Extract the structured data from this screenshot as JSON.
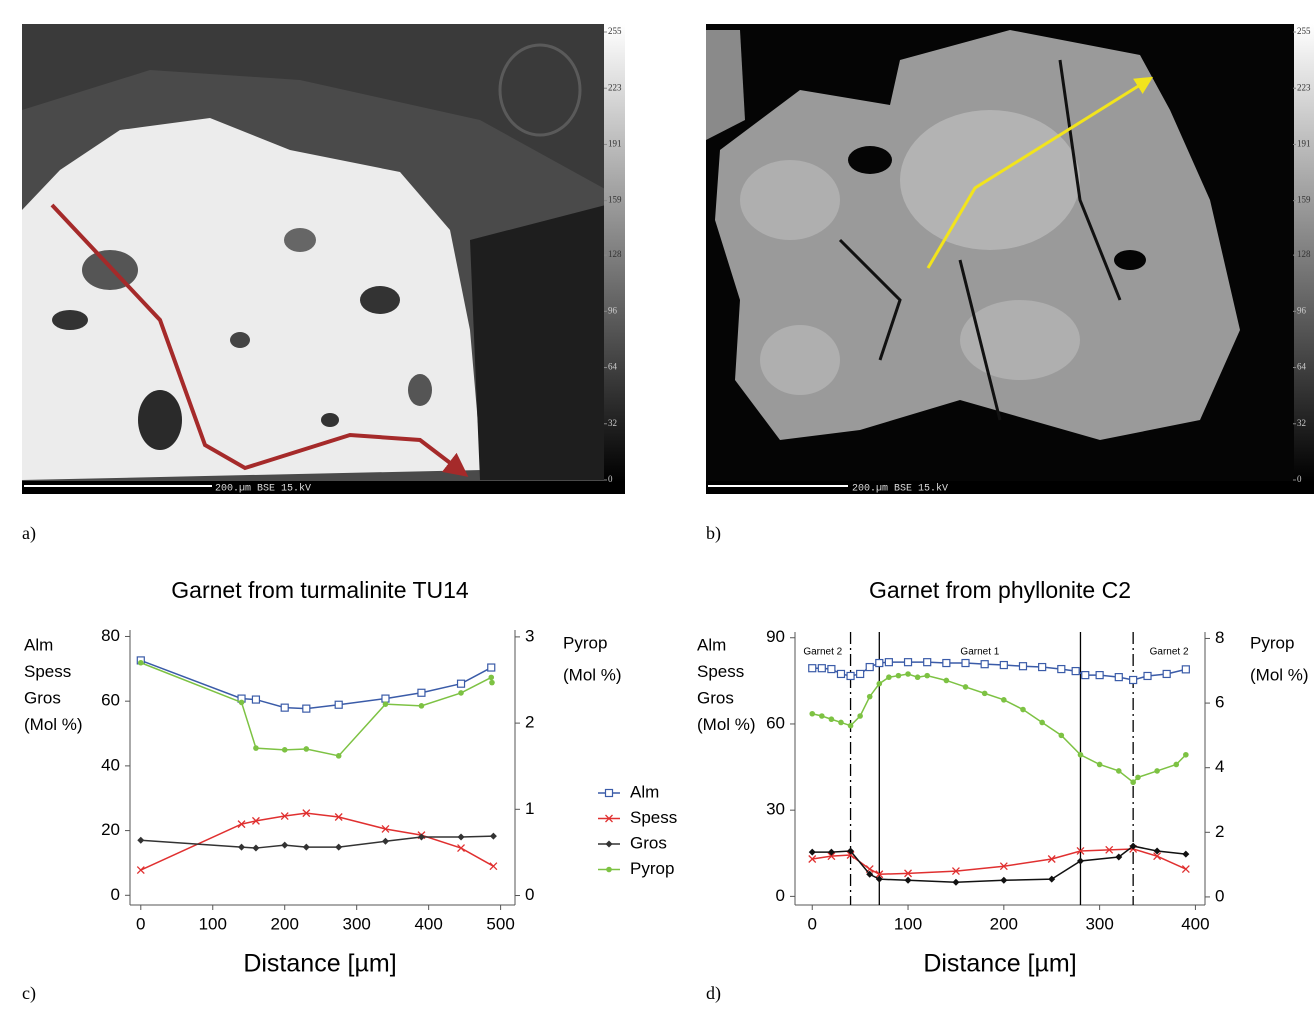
{
  "images": [
    {
      "label": "a)",
      "scale_bar": "200.µm BSE 15.kV",
      "gray_ticks": [
        255,
        223,
        191,
        159,
        128,
        96,
        64,
        32,
        0
      ]
    },
    {
      "label": "b)",
      "scale_bar": "200.µm BSE 15.kV",
      "gray_ticks": [
        255,
        223,
        191,
        159,
        128,
        96,
        64,
        32,
        0
      ]
    }
  ],
  "chart_data": [
    {
      "type": "line",
      "label": "c)",
      "title": "Garnet from turmalinite TU14",
      "xlabel": "Distance [µm]",
      "ylabel": [
        "Alm",
        "Spess",
        "Gros",
        "(Mol %)"
      ],
      "y2label": [
        "Pyrop",
        "(Mol %)"
      ],
      "xlim": [
        -15,
        520
      ],
      "xticks": [
        0,
        100,
        200,
        300,
        400,
        500
      ],
      "ylim": [
        -3,
        82
      ],
      "yticks": [
        0,
        20,
        40,
        60,
        80
      ],
      "y2lim": [
        -0.11,
        3.08
      ],
      "y2ticks": [
        0,
        1,
        2,
        3
      ],
      "legend": true,
      "series": [
        {
          "name": "Alm",
          "color": "#3a5ba8",
          "marker": "square",
          "x": [
            0,
            140,
            160,
            200,
            230,
            275,
            340,
            390,
            445,
            487
          ],
          "values": [
            72.6,
            60.8,
            60.5,
            58,
            57.7,
            58.9,
            60.8,
            62.6,
            65.4,
            70.4
          ]
        },
        {
          "name": "Spess",
          "color": "#e03030",
          "marker": "cross",
          "x": [
            0,
            140,
            160,
            200,
            230,
            275,
            340,
            390,
            445,
            490
          ],
          "values": [
            7.8,
            22,
            23,
            24.5,
            25.4,
            24.2,
            20.5,
            18.6,
            14.6,
            9
          ]
        },
        {
          "name": "Gros",
          "color": "#333333",
          "marker": "diamond",
          "x": [
            0,
            140,
            160,
            200,
            230,
            275,
            340,
            390,
            445,
            490
          ],
          "values": [
            17,
            14.9,
            14.6,
            15.5,
            14.9,
            14.9,
            16.7,
            18,
            18,
            18.3
          ]
        },
        {
          "name": "Pyrop",
          "color": "#7dc243",
          "marker": "circle",
          "axis": "y2",
          "x": [
            0,
            140,
            160,
            200,
            230,
            275,
            340,
            390,
            445,
            487,
            488
          ],
          "values": [
            2.7,
            2.24,
            1.71,
            1.69,
            1.7,
            1.62,
            2.22,
            2.2,
            2.35,
            2.53,
            2.47
          ]
        }
      ]
    },
    {
      "type": "line",
      "label": "d)",
      "title": "Garnet from phyllonite C2",
      "xlabel": "Distance [µm]",
      "ylabel": [
        "Alm",
        "Spess",
        "Gros",
        "(Mol %)"
      ],
      "y2label": [
        "Pyrop",
        "(Mol %)"
      ],
      "xlim": [
        -18,
        410
      ],
      "xticks": [
        0,
        100,
        200,
        300,
        400
      ],
      "ylim": [
        -3,
        92
      ],
      "yticks": [
        0,
        30,
        60,
        90
      ],
      "y2lim": [
        -0.25,
        8.2
      ],
      "y2ticks": [
        0,
        2,
        4,
        6,
        8
      ],
      "legend": false,
      "vlines": [
        {
          "value": 40,
          "dashed": true
        },
        {
          "value": 70,
          "dashed": false
        },
        {
          "value": 280,
          "dashed": false
        },
        {
          "value": 335,
          "dashed": true
        }
      ],
      "region_labels": [
        "Garnet 2",
        "Garnet 1",
        "Garnet 2"
      ],
      "series": [
        {
          "name": "Alm",
          "color": "#3a5ba8",
          "marker": "square",
          "x": [
            0,
            10,
            20,
            30,
            40,
            50,
            60,
            70,
            80,
            100,
            120,
            140,
            160,
            180,
            200,
            220,
            240,
            260,
            275,
            285,
            300,
            320,
            335,
            350,
            370,
            390
          ],
          "values": [
            79.4,
            79.4,
            79.1,
            77.4,
            76.7,
            77.4,
            79.8,
            81.2,
            81.5,
            81.5,
            81.5,
            81.2,
            81.2,
            80.8,
            80.5,
            80.1,
            79.8,
            79.1,
            78.4,
            77,
            77,
            76.3,
            75.3,
            76.7,
            77.4,
            79
          ]
        },
        {
          "name": "Spess",
          "color": "#e03030",
          "marker": "cross",
          "x": [
            0,
            20,
            40,
            60,
            70,
            100,
            150,
            200,
            250,
            280,
            310,
            335,
            360,
            390
          ],
          "values": [
            13,
            14,
            14.4,
            9.5,
            7.7,
            8,
            8.8,
            10.5,
            13,
            15.8,
            16.2,
            16.5,
            14,
            9.5
          ]
        },
        {
          "name": "Gros",
          "color": "#111111",
          "marker": "diamond",
          "x": [
            0,
            20,
            40,
            60,
            70,
            100,
            150,
            200,
            250,
            280,
            320,
            335,
            360,
            390
          ],
          "values": [
            15.4,
            15.4,
            15.8,
            7.7,
            6,
            5.6,
            4.9,
            5.6,
            6,
            12.3,
            13.7,
            17.5,
            15.8,
            14.7
          ]
        },
        {
          "name": "Pyrop",
          "color": "#7dc243",
          "marker": "circle",
          "axis": "y2",
          "x": [
            0,
            10,
            20,
            30,
            40,
            50,
            60,
            70,
            80,
            90,
            100,
            110,
            120,
            140,
            160,
            180,
            200,
            220,
            240,
            260,
            280,
            300,
            320,
            335,
            340,
            360,
            380,
            390
          ],
          "values": [
            5.67,
            5.6,
            5.5,
            5.4,
            5.3,
            5.6,
            6.2,
            6.6,
            6.8,
            6.85,
            6.9,
            6.8,
            6.85,
            6.7,
            6.5,
            6.3,
            6.1,
            5.8,
            5.4,
            5,
            4.4,
            4.1,
            3.9,
            3.55,
            3.7,
            3.9,
            4.1,
            4.4
          ]
        }
      ]
    }
  ]
}
